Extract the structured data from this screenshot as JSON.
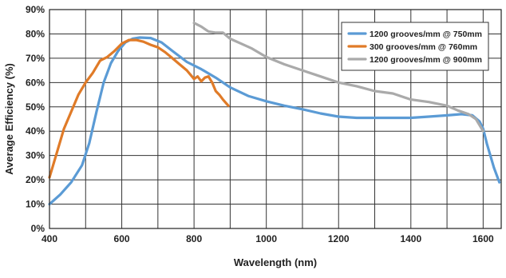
{
  "chart_data": {
    "type": "line",
    "title": "",
    "xlabel": "Wavelength (nm)",
    "ylabel": "Average Efficiency (%)",
    "xlim": [
      400,
      1650
    ],
    "ylim": [
      0,
      90
    ],
    "x_ticks": [
      400,
      600,
      800,
      1000,
      1200,
      1400,
      1600
    ],
    "y_ticks": [
      0,
      10,
      20,
      30,
      40,
      50,
      60,
      70,
      80,
      90
    ],
    "y_tick_suffix": "%",
    "grid": true,
    "legend_position": "top-right",
    "series": [
      {
        "name": "1200 grooves/mm @ 750mm",
        "color": "#5b9bd5",
        "x": [
          400,
          430,
          460,
          490,
          510,
          530,
          550,
          570,
          590,
          610,
          630,
          650,
          680,
          710,
          740,
          780,
          820,
          860,
          900,
          950,
          1000,
          1050,
          1100,
          1150,
          1200,
          1250,
          1300,
          1350,
          1400,
          1450,
          1500,
          1540,
          1570,
          1590,
          1600,
          1610,
          1620,
          1630,
          1645
        ],
        "y": [
          10,
          14,
          19,
          26,
          35,
          48,
          60,
          68,
          73,
          76.5,
          78,
          78.5,
          78.3,
          76.5,
          73,
          68.5,
          65.5,
          62,
          58,
          54.5,
          52.3,
          50.5,
          49,
          47.3,
          46,
          45.5,
          45.5,
          45.5,
          45.5,
          46,
          46.5,
          47,
          46.5,
          44,
          41,
          35,
          30,
          25,
          19
        ]
      },
      {
        "name": "300 grooves/mm @ 760mm",
        "color": "#e07b28",
        "x": [
          400,
          420,
          440,
          460,
          480,
          500,
          520,
          540,
          560,
          580,
          600,
          620,
          640,
          660,
          680,
          700,
          720,
          740,
          760,
          780,
          800,
          810,
          820,
          830,
          840,
          850,
          860,
          870,
          880,
          895
        ],
        "y": [
          21,
          31,
          41,
          48,
          55,
          60,
          64,
          69,
          70.5,
          73,
          76,
          77.5,
          77.5,
          76.8,
          75.5,
          74.5,
          72.5,
          70,
          67.5,
          65,
          61.5,
          62.5,
          60.5,
          62,
          62.5,
          60,
          56.5,
          55,
          53,
          50.5
        ]
      },
      {
        "name": "1200 grooves/mm @ 900mm",
        "color": "#aaaaaa",
        "x": [
          800,
          820,
          840,
          860,
          880,
          900,
          930,
          960,
          1000,
          1050,
          1100,
          1150,
          1200,
          1250,
          1300,
          1350,
          1400,
          1450,
          1500,
          1530,
          1560,
          1580,
          1600
        ],
        "y": [
          84.5,
          83,
          81,
          80.5,
          80.5,
          78,
          76,
          74,
          70.5,
          67.5,
          65,
          62.5,
          60,
          58.5,
          56.5,
          55.5,
          53,
          52,
          50.5,
          48.5,
          47,
          45,
          40
        ]
      }
    ]
  }
}
